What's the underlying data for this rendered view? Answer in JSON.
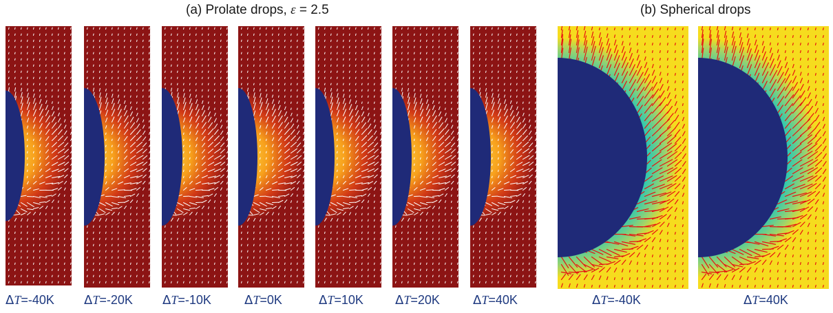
{
  "figure": {
    "heading_a_prefix": "(a) Prolate drops, ",
    "heading_a_symbol": "ε",
    "heading_a_suffix": " = 2.5",
    "heading_b": "(b) Spherical drops",
    "prolate_panels": [
      {
        "delta": "Δ",
        "var": "T",
        "value": "=-40K"
      },
      {
        "delta": "Δ",
        "var": "T",
        "value": "=-20K"
      },
      {
        "delta": "Δ",
        "var": "T",
        "value": "=-10K"
      },
      {
        "delta": "Δ",
        "var": "T",
        "value": "=0K"
      },
      {
        "delta": "Δ",
        "var": "T",
        "value": "=10K"
      },
      {
        "delta": "Δ",
        "var": "T",
        "value": "=20K"
      },
      {
        "delta": "Δ",
        "var": "T",
        "value": "=40K"
      }
    ],
    "spherical_panels": [
      {
        "delta": "Δ",
        "var": "T",
        "value": "=-40K"
      },
      {
        "delta": "Δ",
        "var": "T",
        "value": "=40K"
      }
    ],
    "colors": {
      "drop": "#1f2a78",
      "background_prolate": "#8c1414",
      "background_spherical": "#f6dc1e",
      "arrows_prolate": "#ffffff",
      "arrows_spherical": "#e81010",
      "caption": "#1f3a80"
    }
  }
}
